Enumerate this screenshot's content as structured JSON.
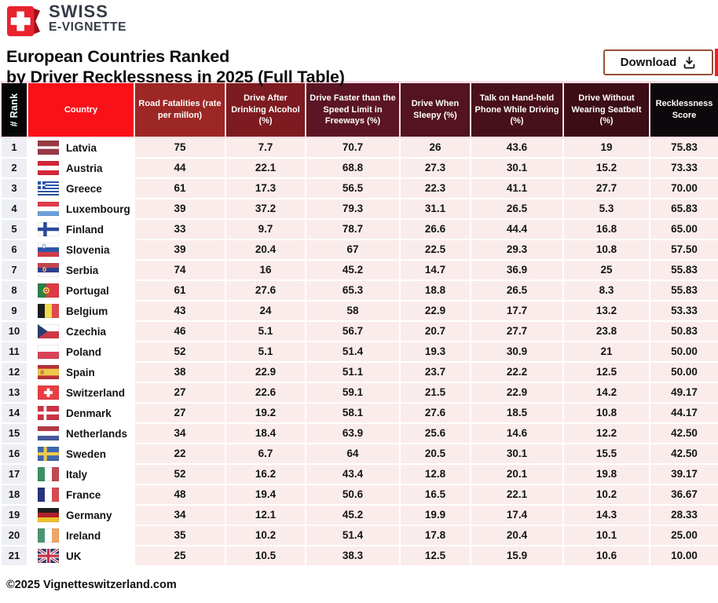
{
  "brand": {
    "line1": "SWISS",
    "line2": "E-VIGNETTE"
  },
  "title": {
    "line1": "European Countries Ranked",
    "line2": "by Driver Recklessness in 2025 (Full Table)"
  },
  "download": {
    "label": "Download"
  },
  "footer": {
    "copyright": "©2025 Vignetteswitzerland.com"
  },
  "colors": {
    "accent_red": "#fa1019",
    "logo_red": "#e8232d",
    "logo_dark_red": "#a2101b",
    "cell_pink": "#fbecec",
    "rank_gray": "#edeff4",
    "download_border_brown": "#9a5038",
    "header_text": "#ffffff"
  },
  "table": {
    "columns": [
      {
        "label": "# Rank",
        "bg": "#050505"
      },
      {
        "label": "Country",
        "bg": "#fa1019"
      },
      {
        "label": "Road Fatalities (rate per millon)",
        "bg": "#9c2725"
      },
      {
        "label": "Drive After Drinking Alcohol (%)",
        "bg": "#7d1b20"
      },
      {
        "label": "Drive Faster than the Speed Limit in Freeways (%)",
        "bg": "#5c1524"
      },
      {
        "label": "Drive When Sleepy (%)",
        "bg": "#531320"
      },
      {
        "label": "Talk on Hand-held Phone While Driving (%)",
        "bg": "#48101b"
      },
      {
        "label": "Drive Without Wearing Seatbelt (%)",
        "bg": "#3c0d16"
      },
      {
        "label": "Recklessness Score",
        "bg": "#0d080b"
      }
    ],
    "rows": [
      {
        "rank": "1",
        "country": "Latvia",
        "flag": "latvia",
        "values": [
          "75",
          "7.7",
          "70.7",
          "26",
          "43.6",
          "19",
          "75.83"
        ]
      },
      {
        "rank": "2",
        "country": "Austria",
        "flag": "austria",
        "values": [
          "44",
          "22.1",
          "68.8",
          "27.3",
          "30.1",
          "15.2",
          "73.33"
        ]
      },
      {
        "rank": "3",
        "country": "Greece",
        "flag": "greece",
        "values": [
          "61",
          "17.3",
          "56.5",
          "22.3",
          "41.1",
          "27.7",
          "70.00"
        ]
      },
      {
        "rank": "4",
        "country": "Luxembourg",
        "flag": "luxembourg",
        "values": [
          "39",
          "37.2",
          "79.3",
          "31.1",
          "26.5",
          "5.3",
          "65.83"
        ]
      },
      {
        "rank": "5",
        "country": "Finland",
        "flag": "finland",
        "values": [
          "33",
          "9.7",
          "78.7",
          "26.6",
          "44.4",
          "16.8",
          "65.00"
        ]
      },
      {
        "rank": "6",
        "country": "Slovenia",
        "flag": "slovenia",
        "values": [
          "39",
          "20.4",
          "67",
          "22.5",
          "29.3",
          "10.8",
          "57.50"
        ]
      },
      {
        "rank": "7",
        "country": "Serbia",
        "flag": "serbia",
        "values": [
          "74",
          "16",
          "45.2",
          "14.7",
          "36.9",
          "25",
          "55.83"
        ]
      },
      {
        "rank": "8",
        "country": "Portugal",
        "flag": "portugal",
        "values": [
          "61",
          "27.6",
          "65.3",
          "18.8",
          "26.5",
          "8.3",
          "55.83"
        ]
      },
      {
        "rank": "9",
        "country": "Belgium",
        "flag": "belgium",
        "values": [
          "43",
          "24",
          "58",
          "22.9",
          "17.7",
          "13.2",
          "53.33"
        ]
      },
      {
        "rank": "10",
        "country": "Czechia",
        "flag": "czechia",
        "values": [
          "46",
          "5.1",
          "56.7",
          "20.7",
          "27.7",
          "23.8",
          "50.83"
        ]
      },
      {
        "rank": "11",
        "country": "Poland",
        "flag": "poland",
        "values": [
          "52",
          "5.1",
          "51.4",
          "19.3",
          "30.9",
          "21",
          "50.00"
        ]
      },
      {
        "rank": "12",
        "country": "Spain",
        "flag": "spain",
        "values": [
          "38",
          "22.9",
          "51.1",
          "23.7",
          "22.2",
          "12.5",
          "50.00"
        ]
      },
      {
        "rank": "13",
        "country": "Switzerland",
        "flag": "switzerland",
        "values": [
          "27",
          "22.6",
          "59.1",
          "21.5",
          "22.9",
          "14.2",
          "49.17"
        ]
      },
      {
        "rank": "14",
        "country": "Denmark",
        "flag": "denmark",
        "values": [
          "27",
          "19.2",
          "58.1",
          "27.6",
          "18.5",
          "10.8",
          "44.17"
        ]
      },
      {
        "rank": "15",
        "country": "Netherlands",
        "flag": "netherlands",
        "values": [
          "34",
          "18.4",
          "63.9",
          "25.6",
          "14.6",
          "12.2",
          "42.50"
        ]
      },
      {
        "rank": "16",
        "country": "Sweden",
        "flag": "sweden",
        "values": [
          "22",
          "6.7",
          "64",
          "20.5",
          "30.1",
          "15.5",
          "42.50"
        ]
      },
      {
        "rank": "17",
        "country": "Italy",
        "flag": "italy",
        "values": [
          "52",
          "16.2",
          "43.4",
          "12.8",
          "20.1",
          "19.8",
          "39.17"
        ]
      },
      {
        "rank": "18",
        "country": "France",
        "flag": "france",
        "values": [
          "48",
          "19.4",
          "50.6",
          "16.5",
          "22.1",
          "10.2",
          "36.67"
        ]
      },
      {
        "rank": "19",
        "country": "Germany",
        "flag": "germany",
        "values": [
          "34",
          "12.1",
          "45.2",
          "19.9",
          "17.4",
          "14.3",
          "28.33"
        ]
      },
      {
        "rank": "20",
        "country": "Ireland",
        "flag": "ireland",
        "values": [
          "35",
          "10.2",
          "51.4",
          "17.8",
          "20.4",
          "10.1",
          "25.00"
        ]
      },
      {
        "rank": "21",
        "country": "UK",
        "flag": "uk",
        "values": [
          "25",
          "10.5",
          "38.3",
          "12.5",
          "15.9",
          "10.6",
          "10.00"
        ]
      }
    ]
  }
}
